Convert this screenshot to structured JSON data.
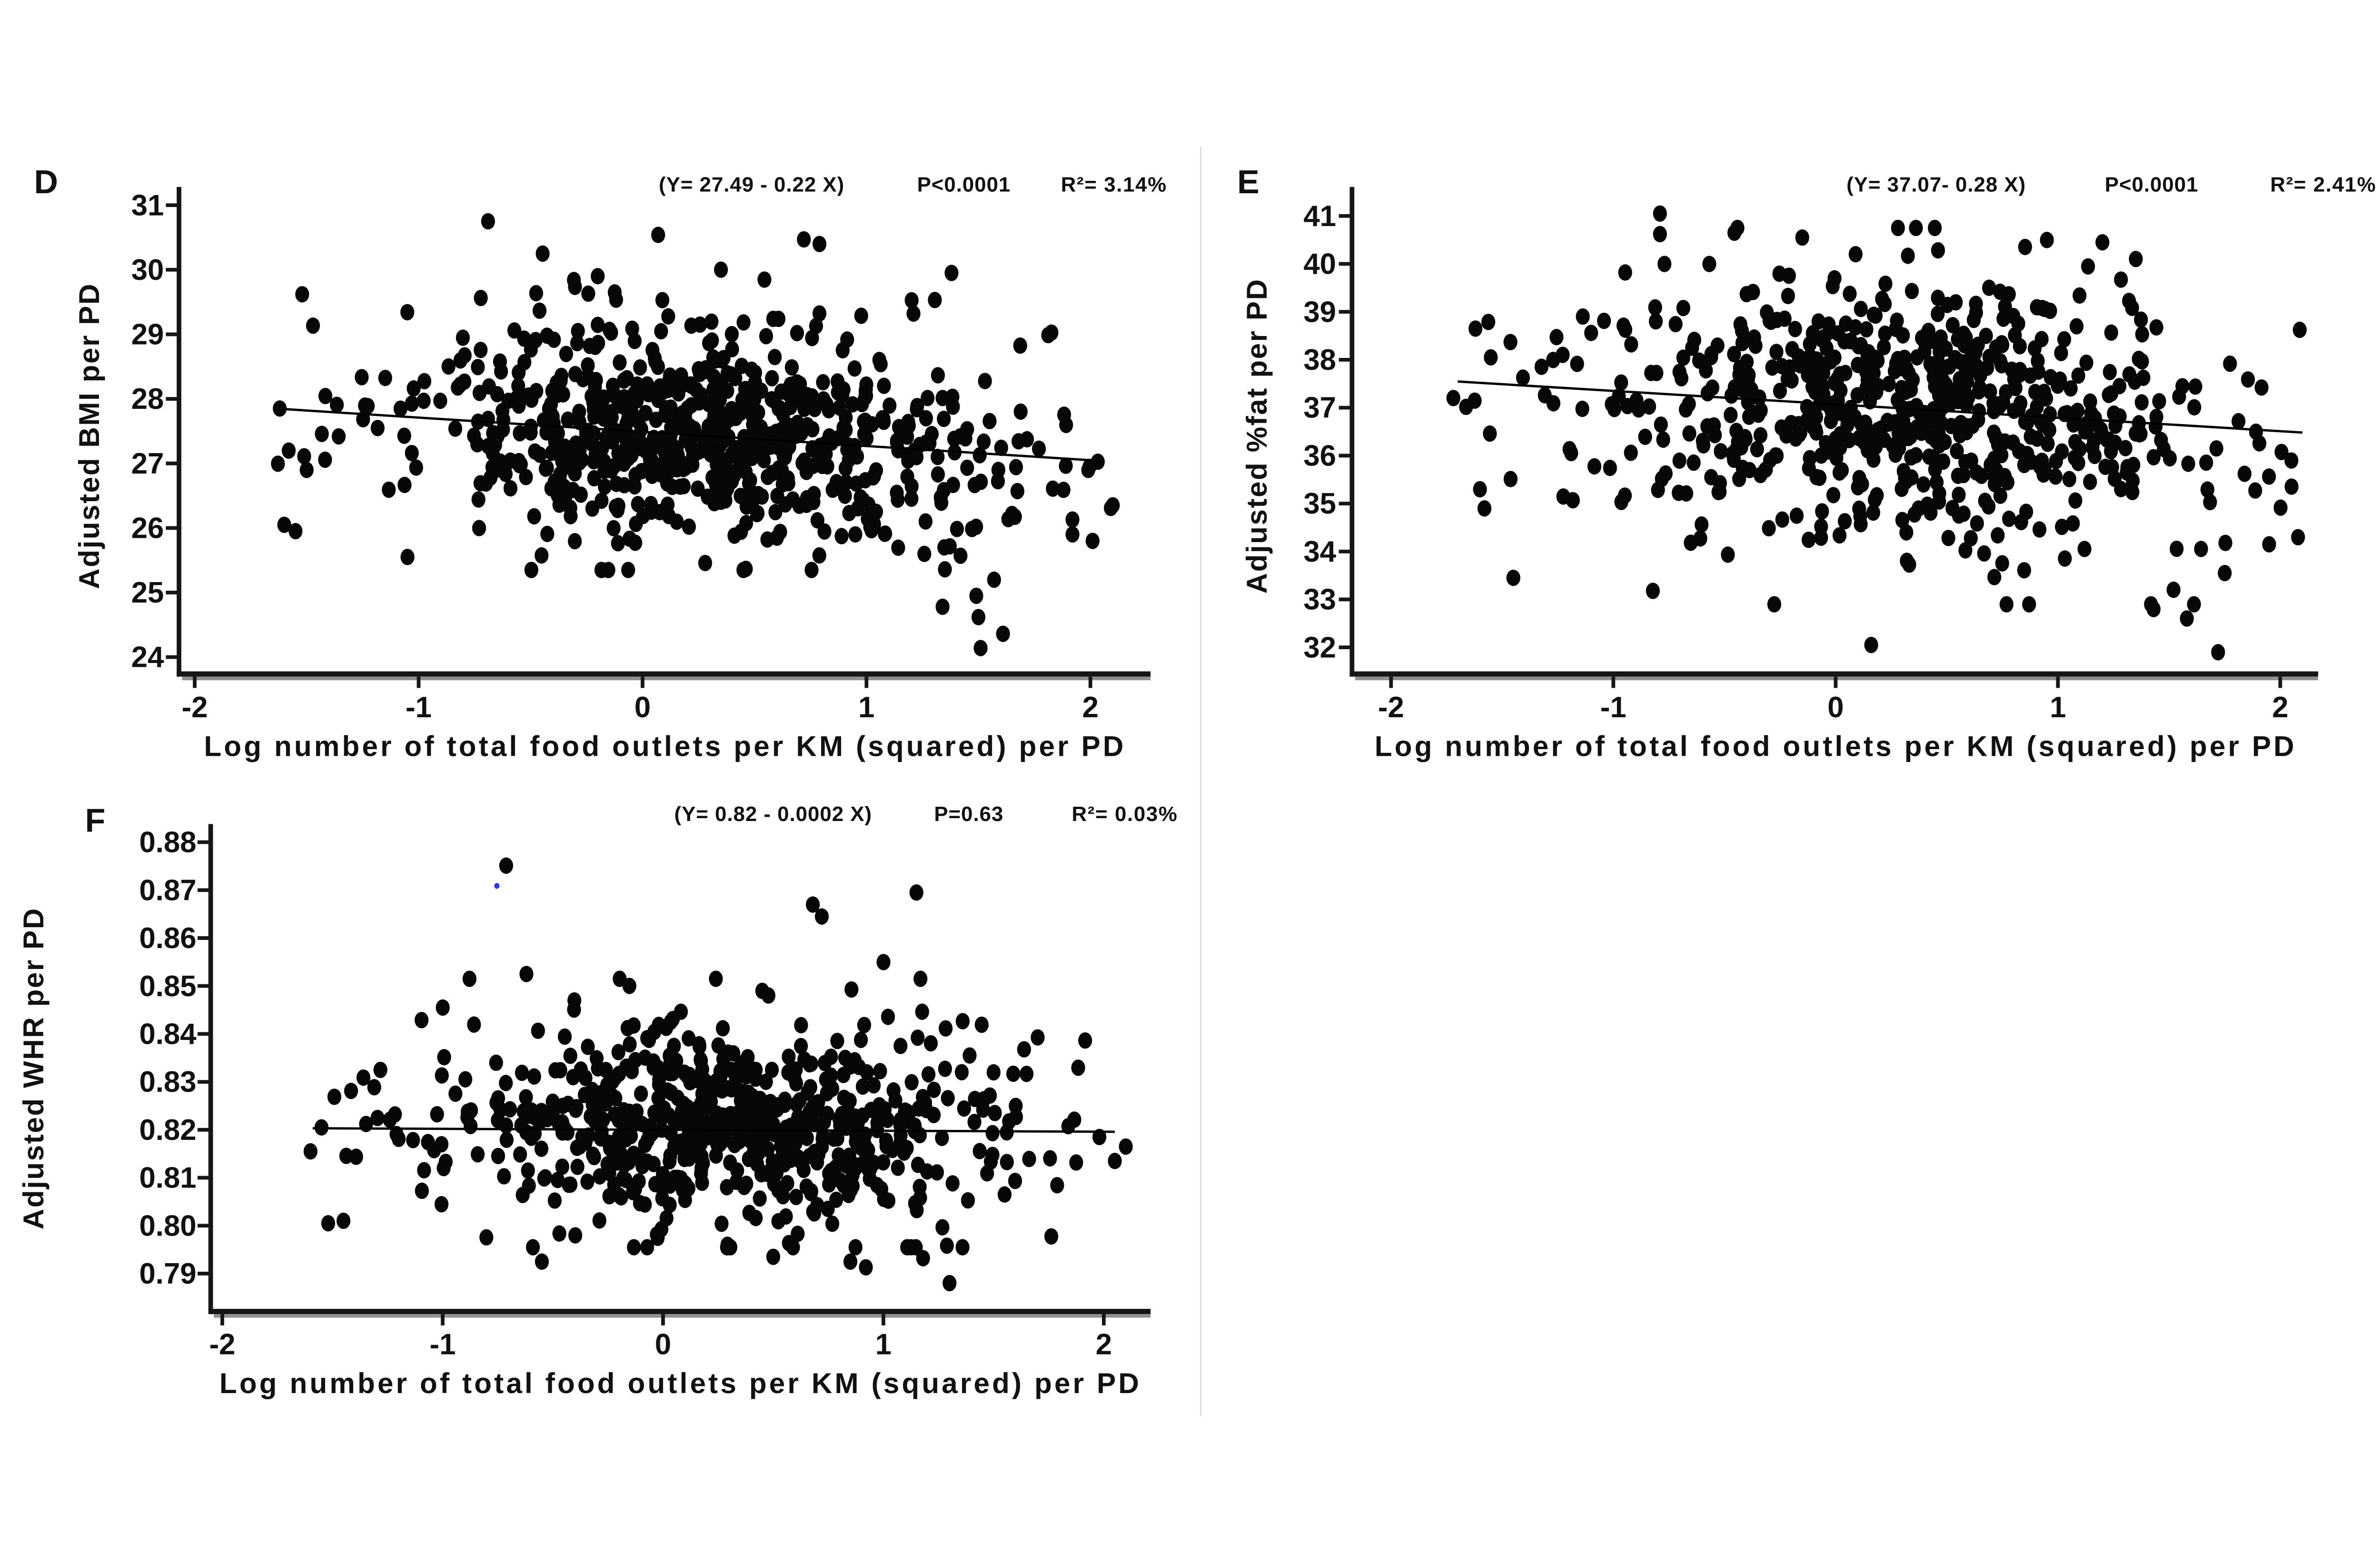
{
  "figure": {
    "background": "#ffffff",
    "divider_color": "#d8d8d8",
    "point_color": "#070707",
    "axis_color": "#161616",
    "axis_shadow_color": "#8f8f8f",
    "regression_line_color": "#000000",
    "special_point_color": "#3434d6"
  },
  "chart_data": [
    {
      "type": "scatter",
      "panel_label": "D",
      "annotation": {
        "equation": "(Y= 27.49 - 0.22 X)",
        "p_value": "P<0.0001",
        "r_squared": "R²= 3.14%"
      },
      "xlabel": "Log number of total food outlets per KM (squared) per PD",
      "ylabel": "Adjusted BMI per PD",
      "x_tick_labels": [
        "-2",
        "-1",
        "0",
        "1",
        "2"
      ],
      "x_ticks": [
        -2,
        -1,
        0,
        1,
        2
      ],
      "y_tick_labels": [
        "31",
        "30",
        "29",
        "28",
        "27",
        "26",
        "25",
        "24"
      ],
      "y_ticks": [
        31,
        30,
        29,
        28,
        27,
        26,
        25,
        24
      ],
      "xlim": [
        -2.1,
        2.25
      ],
      "ylim": [
        23.7,
        31.3
      ],
      "grid": false,
      "regression": {
        "intercept": 27.49,
        "slope": -0.22,
        "x_from": -1.59,
        "x_to": 2.05
      },
      "scatter_cloud": {
        "n": 760,
        "seed": 7,
        "x_components": [
          {
            "w": 0.72,
            "mean": 0.35,
            "sd": 0.55
          },
          {
            "w": 0.28,
            "mean": 0.12,
            "sd": 1.0
          }
        ],
        "x_clip": [
          -1.63,
          2.12
        ],
        "y_sigmas": [
          {
            "w": 0.65,
            "sd": 0.62
          },
          {
            "w": 0.35,
            "sd": 1.05
          }
        ],
        "y_clip": [
          25.35,
          30.25
        ]
      },
      "outlier_points": [
        [
          -0.69,
          30.75
        ],
        [
          0.07,
          30.54
        ],
        [
          0.72,
          30.47
        ],
        [
          0.79,
          30.4
        ],
        [
          1.38,
          29.95
        ],
        [
          -1.52,
          29.62
        ],
        [
          -0.2,
          29.9
        ],
        [
          0.35,
          30.0
        ],
        [
          1.51,
          24.14
        ],
        [
          1.5,
          24.62
        ],
        [
          1.61,
          24.36
        ],
        [
          1.34,
          24.78
        ],
        [
          1.49,
          24.95
        ],
        [
          1.35,
          25.36
        ],
        [
          1.42,
          25.57
        ],
        [
          1.57,
          25.2
        ],
        [
          1.92,
          26.13
        ],
        [
          1.92,
          25.9
        ],
        [
          2.01,
          25.8
        ],
        [
          0.95,
          25.9
        ],
        [
          0.6,
          25.85
        ],
        [
          -1.6,
          26.05
        ],
        [
          -1.55,
          25.95
        ],
        [
          -1.05,
          25.55
        ],
        [
          -0.73,
          26.0
        ],
        [
          2.1,
          26.35
        ],
        [
          -1.62,
          27.85
        ],
        [
          -1.58,
          27.2
        ],
        [
          -1.5,
          26.9
        ]
      ],
      "special_points": []
    },
    {
      "type": "scatter",
      "panel_label": "E",
      "annotation": {
        "equation": "(Y= 37.07- 0.28 X)",
        "p_value": "P<0.0001",
        "r_squared": "R²= 2.41%"
      },
      "xlabel": "Log number of total food outlets per KM (squared) per PD",
      "ylabel": "Adjusted %fat per PD",
      "x_tick_labels": [
        "-2",
        "-1",
        "0",
        "1",
        "2"
      ],
      "x_ticks": [
        -2,
        -1,
        0,
        1,
        2
      ],
      "y_tick_labels": [
        "41",
        "40",
        "39",
        "38",
        "37",
        "36",
        "35",
        "34",
        "33",
        "32"
      ],
      "y_ticks": [
        41,
        40,
        39,
        38,
        37,
        36,
        35,
        34,
        33,
        32
      ],
      "xlim": [
        -2.18,
        2.17
      ],
      "ylim": [
        31.6,
        41.6
      ],
      "grid": false,
      "regression": {
        "intercept": 37.07,
        "slope": -0.28,
        "x_from": -1.7,
        "x_to": 2.1
      },
      "scatter_cloud": {
        "n": 690,
        "seed": 11,
        "x_components": [
          {
            "w": 0.7,
            "mean": 0.35,
            "sd": 0.58
          },
          {
            "w": 0.3,
            "mean": 0.05,
            "sd": 1.0
          }
        ],
        "x_clip": [
          -1.78,
          2.12
        ],
        "y_sigmas": [
          {
            "w": 0.6,
            "sd": 1.15
          },
          {
            "w": 0.4,
            "sd": 1.75
          }
        ],
        "y_clip": [
          32.9,
          40.75
        ]
      },
      "outlier_points": [
        [
          -0.79,
          41.05
        ],
        [
          -0.79,
          40.62
        ],
        [
          -0.77,
          40.0
        ],
        [
          -0.15,
          40.55
        ],
        [
          0.09,
          40.2
        ],
        [
          0.95,
          40.5
        ],
        [
          1.2,
          40.45
        ],
        [
          1.35,
          40.1
        ],
        [
          -1.62,
          38.65
        ],
        [
          -1.72,
          37.2
        ],
        [
          -1.6,
          35.3
        ],
        [
          -1.58,
          34.9
        ],
        [
          1.72,
          31.9
        ],
        [
          0.16,
          32.05
        ],
        [
          1.58,
          32.6
        ],
        [
          1.52,
          33.2
        ],
        [
          1.75,
          33.55
        ],
        [
          2.08,
          34.3
        ],
        [
          1.95,
          34.15
        ],
        [
          2.05,
          35.9
        ],
        [
          -1.45,
          33.45
        ],
        [
          1.43,
          32.8
        ]
      ],
      "special_points": []
    },
    {
      "type": "scatter",
      "panel_label": "F",
      "annotation": {
        "equation": "(Y= 0.82 - 0.0002 X)",
        "p_value": "P=0.63",
        "r_squared": "R²= 0.03%"
      },
      "xlabel": "Log number of total food outlets per KM (squared) per PD",
      "ylabel": "Adjusted WHR per PD",
      "x_tick_labels": [
        "-2",
        "-1",
        "0",
        "1",
        "2"
      ],
      "x_ticks": [
        -2,
        -1,
        0,
        1,
        2
      ],
      "y_tick_labels": [
        "0.88",
        "0.87",
        "0.86",
        "0.85",
        "0.84",
        "0.83",
        "0.82",
        "0.81",
        "0.80",
        "0.79"
      ],
      "y_ticks": [
        0.88,
        0.87,
        0.86,
        0.85,
        0.84,
        0.83,
        0.82,
        0.81,
        0.8,
        0.79
      ],
      "xlim": [
        -2.05,
        2.21
      ],
      "ylim": [
        0.784,
        0.884
      ],
      "grid": false,
      "regression": {
        "intercept": 0.82,
        "slope": -0.0002,
        "x_from": -1.59,
        "x_to": 2.05
      },
      "scatter_cloud": {
        "n": 670,
        "seed": 23,
        "x_components": [
          {
            "w": 0.7,
            "mean": 0.3,
            "sd": 0.58
          },
          {
            "w": 0.3,
            "mean": 0.1,
            "sd": 1.0
          }
        ],
        "x_clip": [
          -1.63,
          2.12
        ],
        "y_sigmas": [
          {
            "w": 0.65,
            "sd": 0.0085
          },
          {
            "w": 0.35,
            "sd": 0.0135
          }
        ],
        "y_clip": [
          0.7955,
          0.8515
        ]
      },
      "outlier_points": [
        [
          -0.712,
          0.8751
        ],
        [
          0.68,
          0.867
        ],
        [
          0.72,
          0.8645
        ],
        [
          1.15,
          0.8695
        ],
        [
          1.0,
          0.855
        ],
        [
          -0.62,
          0.8525
        ],
        [
          0.45,
          0.849
        ],
        [
          -1.0,
          0.8455
        ],
        [
          0.92,
          0.7913
        ],
        [
          1.18,
          0.7932
        ],
        [
          1.3,
          0.788
        ],
        [
          0.85,
          0.7925
        ],
        [
          0.5,
          0.7935
        ],
        [
          -0.55,
          0.7925
        ],
        [
          -1.55,
          0.8205
        ],
        [
          -1.52,
          0.8005
        ],
        [
          -1.45,
          0.801
        ],
        [
          -1.6,
          0.8155
        ],
        [
          2.1,
          0.8165
        ],
        [
          2.05,
          0.8135
        ],
        [
          1.98,
          0.8185
        ],
        [
          1.6,
          0.825
        ],
        [
          1.55,
          0.8065
        ],
        [
          1.5,
          0.832
        ]
      ],
      "special_points": [
        {
          "x": -0.754,
          "y": 0.8709,
          "color": "#3434d6",
          "note": "small blue marker"
        }
      ]
    }
  ]
}
